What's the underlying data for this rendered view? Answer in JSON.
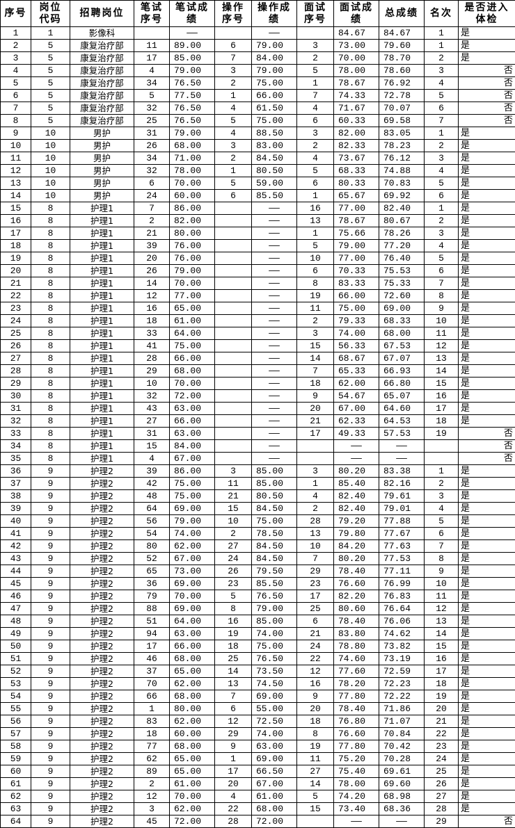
{
  "table": {
    "headers": [
      "序号",
      "岗位\n代码",
      "招聘岗位",
      "笔试\n序号",
      "笔试成\n绩",
      "操作\n序号",
      "操作成\n绩",
      "面试\n序号",
      "面试成\n绩",
      "总成绩",
      "名次",
      "是否进入\n体检"
    ],
    "columns": [
      "seq",
      "post_code",
      "post",
      "written_no",
      "written_score",
      "operation_no",
      "operation_score",
      "interview_no",
      "interview_score",
      "total_score",
      "rank",
      "physical_exam"
    ],
    "rows": [
      [
        "1",
        "1",
        "影像科",
        "",
        "——",
        "",
        "——",
        "",
        "84.67",
        "84.67",
        "1",
        "是"
      ],
      [
        "2",
        "5",
        "康复治疗部",
        "11",
        "89.00",
        "6",
        "79.00",
        "3",
        "73.00",
        "79.60",
        "1",
        "是"
      ],
      [
        "3",
        "5",
        "康复治疗部",
        "17",
        "85.00",
        "7",
        "84.00",
        "2",
        "70.00",
        "78.70",
        "2",
        "是"
      ],
      [
        "4",
        "5",
        "康复治疗部",
        "4",
        "79.00",
        "3",
        "79.00",
        "5",
        "78.00",
        "78.60",
        "3",
        "否"
      ],
      [
        "5",
        "5",
        "康复治疗部",
        "34",
        "76.50",
        "2",
        "75.00",
        "1",
        "78.67",
        "76.92",
        "4",
        "否"
      ],
      [
        "6",
        "5",
        "康复治疗部",
        "5",
        "77.50",
        "1",
        "66.00",
        "7",
        "74.33",
        "72.78",
        "5",
        "否"
      ],
      [
        "7",
        "5",
        "康复治疗部",
        "32",
        "76.50",
        "4",
        "61.50",
        "4",
        "71.67",
        "70.07",
        "6",
        "否"
      ],
      [
        "8",
        "5",
        "康复治疗部",
        "25",
        "76.50",
        "5",
        "75.00",
        "6",
        "60.33",
        "69.58",
        "7",
        "否"
      ],
      [
        "9",
        "10",
        "男护",
        "31",
        "79.00",
        "4",
        "88.50",
        "3",
        "82.00",
        "83.05",
        "1",
        "是"
      ],
      [
        "10",
        "10",
        "男护",
        "26",
        "68.00",
        "3",
        "83.00",
        "2",
        "82.33",
        "78.23",
        "2",
        "是"
      ],
      [
        "11",
        "10",
        "男护",
        "34",
        "71.00",
        "2",
        "84.50",
        "4",
        "73.67",
        "76.12",
        "3",
        "是"
      ],
      [
        "12",
        "10",
        "男护",
        "32",
        "78.00",
        "1",
        "80.50",
        "5",
        "68.33",
        "74.88",
        "4",
        "是"
      ],
      [
        "13",
        "10",
        "男护",
        "6",
        "70.00",
        "5",
        "59.00",
        "6",
        "80.33",
        "70.83",
        "5",
        "是"
      ],
      [
        "14",
        "10",
        "男护",
        "24",
        "60.00",
        "6",
        "85.50",
        "1",
        "65.67",
        "69.92",
        "6",
        "是"
      ],
      [
        "15",
        "8",
        "护理1",
        "7",
        "86.00",
        "",
        "——",
        "16",
        "77.00",
        "82.40",
        "1",
        "是"
      ],
      [
        "16",
        "8",
        "护理1",
        "2",
        "82.00",
        "",
        "——",
        "13",
        "78.67",
        "80.67",
        "2",
        "是"
      ],
      [
        "17",
        "8",
        "护理1",
        "21",
        "80.00",
        "",
        "——",
        "1",
        "75.66",
        "78.26",
        "3",
        "是"
      ],
      [
        "18",
        "8",
        "护理1",
        "39",
        "76.00",
        "",
        "——",
        "5",
        "79.00",
        "77.20",
        "4",
        "是"
      ],
      [
        "19",
        "8",
        "护理1",
        "20",
        "76.00",
        "",
        "——",
        "10",
        "77.00",
        "76.40",
        "5",
        "是"
      ],
      [
        "20",
        "8",
        "护理1",
        "26",
        "79.00",
        "",
        "——",
        "6",
        "70.33",
        "75.53",
        "6",
        "是"
      ],
      [
        "21",
        "8",
        "护理1",
        "14",
        "70.00",
        "",
        "——",
        "8",
        "83.33",
        "75.33",
        "7",
        "是"
      ],
      [
        "22",
        "8",
        "护理1",
        "12",
        "77.00",
        "",
        "——",
        "19",
        "66.00",
        "72.60",
        "8",
        "是"
      ],
      [
        "23",
        "8",
        "护理1",
        "16",
        "65.00",
        "",
        "——",
        "11",
        "75.00",
        "69.00",
        "9",
        "是"
      ],
      [
        "24",
        "8",
        "护理1",
        "18",
        "61.00",
        "",
        "——",
        "2",
        "79.33",
        "68.33",
        "10",
        "是"
      ],
      [
        "25",
        "8",
        "护理1",
        "33",
        "64.00",
        "",
        "——",
        "3",
        "74.00",
        "68.00",
        "11",
        "是"
      ],
      [
        "26",
        "8",
        "护理1",
        "41",
        "75.00",
        "",
        "——",
        "15",
        "56.33",
        "67.53",
        "12",
        "是"
      ],
      [
        "27",
        "8",
        "护理1",
        "28",
        "66.00",
        "",
        "——",
        "14",
        "68.67",
        "67.07",
        "13",
        "是"
      ],
      [
        "28",
        "8",
        "护理1",
        "29",
        "68.00",
        "",
        "——",
        "7",
        "65.33",
        "66.93",
        "14",
        "是"
      ],
      [
        "29",
        "8",
        "护理1",
        "10",
        "70.00",
        "",
        "——",
        "18",
        "62.00",
        "66.80",
        "15",
        "是"
      ],
      [
        "30",
        "8",
        "护理1",
        "32",
        "72.00",
        "",
        "——",
        "9",
        "54.67",
        "65.07",
        "16",
        "是"
      ],
      [
        "31",
        "8",
        "护理1",
        "43",
        "63.00",
        "",
        "——",
        "20",
        "67.00",
        "64.60",
        "17",
        "是"
      ],
      [
        "32",
        "8",
        "护理1",
        "27",
        "66.00",
        "",
        "——",
        "21",
        "62.33",
        "64.53",
        "18",
        "是"
      ],
      [
        "33",
        "8",
        "护理1",
        "31",
        "63.00",
        "",
        "——",
        "17",
        "49.33",
        "57.53",
        "19",
        "否"
      ],
      [
        "34",
        "8",
        "护理1",
        "15",
        "84.00",
        "",
        "——",
        "",
        "——",
        "——",
        "",
        "否"
      ],
      [
        "35",
        "8",
        "护理1",
        "4",
        "67.00",
        "",
        "——",
        "",
        "——",
        "——",
        "",
        "否"
      ],
      [
        "36",
        "9",
        "护理2",
        "39",
        "86.00",
        "3",
        "85.00",
        "3",
        "80.20",
        "83.38",
        "1",
        "是"
      ],
      [
        "37",
        "9",
        "护理2",
        "42",
        "75.00",
        "11",
        "85.00",
        "1",
        "85.40",
        "82.16",
        "2",
        "是"
      ],
      [
        "38",
        "9",
        "护理2",
        "48",
        "75.00",
        "21",
        "80.50",
        "4",
        "82.40",
        "79.61",
        "3",
        "是"
      ],
      [
        "39",
        "9",
        "护理2",
        "64",
        "69.00",
        "15",
        "84.50",
        "2",
        "82.40",
        "79.01",
        "4",
        "是"
      ],
      [
        "40",
        "9",
        "护理2",
        "56",
        "79.00",
        "10",
        "75.00",
        "28",
        "79.20",
        "77.88",
        "5",
        "是"
      ],
      [
        "41",
        "9",
        "护理2",
        "54",
        "74.00",
        "2",
        "78.50",
        "13",
        "79.80",
        "77.67",
        "6",
        "是"
      ],
      [
        "42",
        "9",
        "护理2",
        "80",
        "62.00",
        "27",
        "84.50",
        "10",
        "84.20",
        "77.63",
        "7",
        "是"
      ],
      [
        "43",
        "9",
        "护理2",
        "52",
        "67.00",
        "24",
        "84.50",
        "7",
        "80.20",
        "77.53",
        "8",
        "是"
      ],
      [
        "44",
        "9",
        "护理2",
        "65",
        "73.00",
        "26",
        "79.50",
        "29",
        "78.40",
        "77.11",
        "9",
        "是"
      ],
      [
        "45",
        "9",
        "护理2",
        "36",
        "69.00",
        "23",
        "85.50",
        "23",
        "76.60",
        "76.99",
        "10",
        "是"
      ],
      [
        "46",
        "9",
        "护理2",
        "79",
        "70.00",
        "5",
        "76.50",
        "17",
        "82.20",
        "76.83",
        "11",
        "是"
      ],
      [
        "47",
        "9",
        "护理2",
        "88",
        "69.00",
        "8",
        "79.00",
        "25",
        "80.60",
        "76.64",
        "12",
        "是"
      ],
      [
        "48",
        "9",
        "护理2",
        "51",
        "64.00",
        "16",
        "85.00",
        "6",
        "78.40",
        "76.06",
        "13",
        "是"
      ],
      [
        "49",
        "9",
        "护理2",
        "94",
        "63.00",
        "19",
        "74.00",
        "21",
        "83.80",
        "74.62",
        "14",
        "是"
      ],
      [
        "50",
        "9",
        "护理2",
        "17",
        "66.00",
        "18",
        "75.00",
        "24",
        "78.80",
        "73.82",
        "15",
        "是"
      ],
      [
        "51",
        "9",
        "护理2",
        "46",
        "68.00",
        "25",
        "76.50",
        "22",
        "74.60",
        "73.19",
        "16",
        "是"
      ],
      [
        "52",
        "9",
        "护理2",
        "37",
        "65.00",
        "14",
        "73.50",
        "12",
        "77.60",
        "72.59",
        "17",
        "是"
      ],
      [
        "53",
        "9",
        "护理2",
        "70",
        "62.00",
        "13",
        "74.50",
        "16",
        "78.20",
        "72.23",
        "18",
        "是"
      ],
      [
        "54",
        "9",
        "护理2",
        "66",
        "68.00",
        "7",
        "69.00",
        "9",
        "77.80",
        "72.22",
        "19",
        "是"
      ],
      [
        "55",
        "9",
        "护理2",
        "1",
        "80.00",
        "6",
        "55.00",
        "20",
        "78.40",
        "71.86",
        "20",
        "是"
      ],
      [
        "56",
        "9",
        "护理2",
        "83",
        "62.00",
        "12",
        "72.50",
        "18",
        "76.80",
        "71.07",
        "21",
        "是"
      ],
      [
        "57",
        "9",
        "护理2",
        "18",
        "60.00",
        "29",
        "74.00",
        "8",
        "76.60",
        "70.84",
        "22",
        "是"
      ],
      [
        "58",
        "9",
        "护理2",
        "77",
        "68.00",
        "9",
        "63.00",
        "19",
        "77.80",
        "70.42",
        "23",
        "是"
      ],
      [
        "59",
        "9",
        "护理2",
        "62",
        "65.00",
        "1",
        "69.00",
        "11",
        "75.20",
        "70.28",
        "24",
        "是"
      ],
      [
        "60",
        "9",
        "护理2",
        "89",
        "65.00",
        "17",
        "66.50",
        "27",
        "75.40",
        "69.61",
        "25",
        "是"
      ],
      [
        "61",
        "9",
        "护理2",
        "2",
        "61.00",
        "20",
        "67.00",
        "14",
        "78.00",
        "69.60",
        "26",
        "是"
      ],
      [
        "62",
        "9",
        "护理2",
        "12",
        "70.00",
        "4",
        "61.00",
        "5",
        "74.20",
        "68.98",
        "27",
        "是"
      ],
      [
        "63",
        "9",
        "护理2",
        "3",
        "62.00",
        "22",
        "68.00",
        "15",
        "73.40",
        "68.36",
        "28",
        "是"
      ],
      [
        "64",
        "9",
        "护理2",
        "45",
        "72.00",
        "28",
        "72.00",
        "",
        "——",
        "——",
        "29",
        "否"
      ]
    ]
  }
}
